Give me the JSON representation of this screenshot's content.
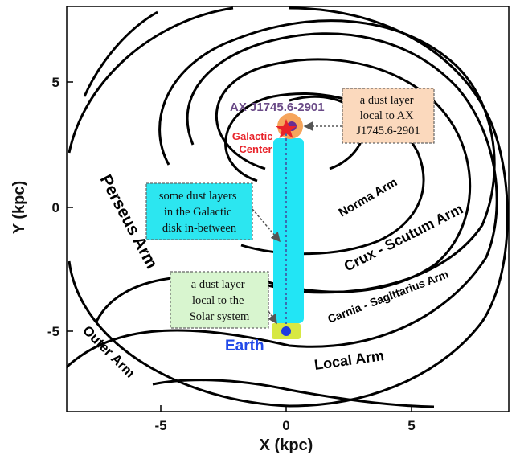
{
  "axes": {
    "x_label": "X (kpc)",
    "y_label": "Y (kpc)",
    "x_ticks": [
      "-5",
      "0",
      "5"
    ],
    "y_ticks": [
      "5",
      "0",
      "-5"
    ]
  },
  "arms": {
    "perseus": "Perseus Arm",
    "outer": "Outer Arm",
    "norma": "Norma Arm",
    "crux": "Crux - Scutum Arm",
    "carina": "Carnia - Sagittarius Arm",
    "local": "Local Arm"
  },
  "markers": {
    "source": "AX J1745.6-2901",
    "galactic_center": [
      "Galactic",
      "Center"
    ],
    "earth": "Earth"
  },
  "callouts": {
    "source_layer": [
      "a dust layer",
      "local to AX",
      "J1745.6-2901"
    ],
    "disk_layers": [
      "some dust layers",
      "in the Galactic",
      "disk in-between"
    ],
    "solar_layer": [
      "a dust layer",
      "local to the",
      "Solar system"
    ]
  },
  "colors": {
    "source_layer": "#f6a55c",
    "disk_band": "#22e5f5",
    "solar_layer": "#d7e843",
    "source_dot": "#6a2d91",
    "galactic_center": "#e8232a",
    "earth": "#1f3be0",
    "earth_label": "#2149e8",
    "source_label": "#6a4a87"
  }
}
